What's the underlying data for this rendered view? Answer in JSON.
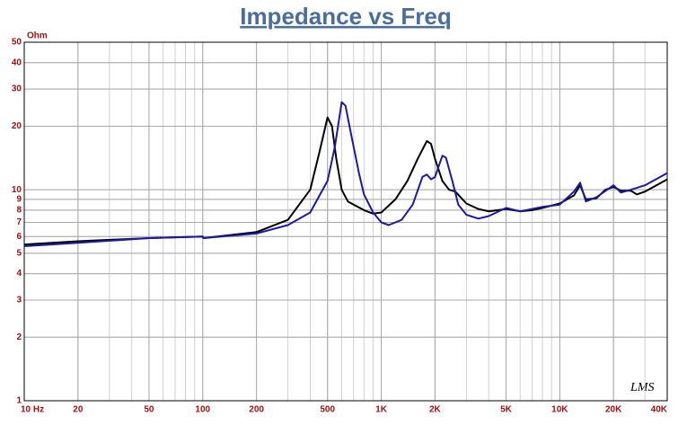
{
  "chart_data": {
    "type": "line",
    "title": "Impedance vs Freq",
    "ylabel": "Ohm",
    "annotation": "LMS",
    "xscale": "log",
    "yscale": "log",
    "grid": true,
    "minor_grid": true,
    "xlim": [
      10,
      40000
    ],
    "ylim": [
      1,
      50
    ],
    "xticks": [
      {
        "value": 10,
        "label": "10 Hz"
      },
      20,
      50,
      100,
      200,
      500,
      {
        "value": 1000,
        "label": "1K"
      },
      {
        "value": 2000,
        "label": "2K"
      },
      {
        "value": 5000,
        "label": "5K"
      },
      {
        "value": 10000,
        "label": "10K"
      },
      {
        "value": 20000,
        "label": "20K"
      },
      {
        "value": 40000,
        "label": "40K"
      }
    ],
    "yticks": [
      1,
      2,
      3,
      4,
      5,
      6,
      7,
      8,
      9,
      10,
      20,
      30,
      40,
      50
    ],
    "series": [
      {
        "color": "#000000",
        "x": [
          10,
          20,
          50,
          100,
          101,
          200,
          300,
          400,
          450,
          500,
          530,
          560,
          600,
          650,
          700,
          800,
          900,
          1000,
          1200,
          1400,
          1600,
          1800,
          1900,
          2000,
          2200,
          2400,
          2600,
          3000,
          3500,
          4000,
          5000,
          6000,
          7000,
          8000,
          10000,
          12000,
          13000,
          14000,
          16000,
          18000,
          20000,
          22000,
          25000,
          27000,
          30000,
          40000
        ],
        "values": [
          5.5,
          5.7,
          5.9,
          6.0,
          5.9,
          6.3,
          7.2,
          10,
          15,
          22,
          20,
          14,
          10,
          8.8,
          8.5,
          8.0,
          7.7,
          7.8,
          9,
          11,
          14,
          17,
          16.5,
          14,
          11,
          10,
          9.8,
          8.6,
          8.1,
          7.9,
          8.1,
          7.9,
          8.0,
          8.2,
          8.6,
          9.4,
          10.5,
          9.0,
          9.1,
          10,
          10.3,
          9.9,
          9.9,
          9.5,
          9.8,
          11.2
        ]
      },
      {
        "color": "#1a1aa6",
        "x": [
          10,
          20,
          50,
          100,
          101,
          200,
          300,
          400,
          500,
          550,
          600,
          630,
          680,
          750,
          800,
          900,
          1000,
          1100,
          1300,
          1500,
          1700,
          1800,
          1900,
          2000,
          2200,
          2300,
          2500,
          2700,
          3000,
          3500,
          4000,
          5000,
          6000,
          8000,
          10000,
          12000,
          13000,
          14000,
          16000,
          20000,
          22000,
          25000,
          30000,
          40000
        ],
        "values": [
          5.4,
          5.6,
          5.9,
          6.0,
          5.9,
          6.2,
          6.8,
          7.8,
          11,
          16,
          26,
          25,
          18,
          12,
          9.5,
          7.8,
          7.0,
          6.8,
          7.2,
          8.5,
          11.5,
          11.8,
          11.2,
          11.5,
          14.5,
          14.2,
          11,
          8.5,
          7.6,
          7.3,
          7.5,
          8.2,
          7.9,
          8.3,
          8.5,
          9.8,
          10.8,
          8.8,
          9.2,
          10.5,
          9.7,
          10.0,
          10.5,
          12
        ]
      }
    ]
  }
}
